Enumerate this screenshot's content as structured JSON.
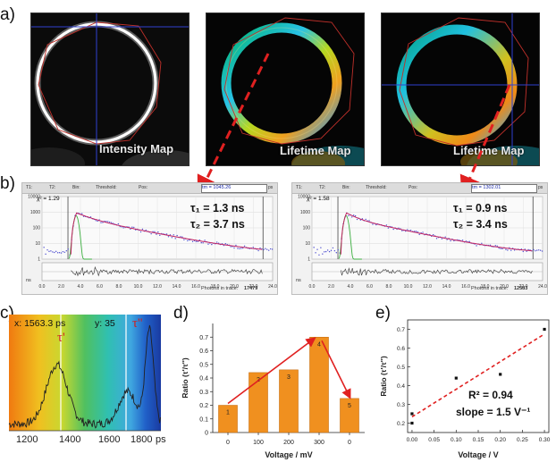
{
  "panels": {
    "a": "a)",
    "b": "b)",
    "c": "c)",
    "d": "d)",
    "e": "e)"
  },
  "panel_a": {
    "images": [
      {
        "label": "Intensity Map"
      },
      {
        "label": "Lifetime Map"
      },
      {
        "label": "Lifetime Map"
      }
    ]
  },
  "panel_b": {
    "left": {
      "toolbar": {
        "t1": "T1:",
        "t2": "T2:",
        "bin": "Bin:",
        "threshold": "Threshold:",
        "pos": "Pos:"
      },
      "tm_value": "1045.26",
      "tm_prefix": "tm =",
      "tm_unit": "ps",
      "chi": "χ² = 1.29",
      "tau1": "τ₁ = 1.3 ns",
      "tau2": "τ₂ = 3.7 ns",
      "photons_label": "Photons in trace:",
      "photons": "17479",
      "ns_label": "ns",
      "xticks": [
        "0.0",
        "2.0",
        "4.0",
        "6.0",
        "8.0",
        "10.0",
        "12.0",
        "14.0",
        "16.0",
        "18.0",
        "20.0",
        "22.0",
        "24.0"
      ],
      "yticks": [
        "10000",
        "1000",
        "100",
        "10",
        "1"
      ]
    },
    "right": {
      "toolbar": {
        "t1": "T1:",
        "t2": "T2:",
        "bin": "Bin:",
        "threshold": "Threshold:",
        "pos": "Pos:"
      },
      "tm_value": "1302.01",
      "tm_prefix": "tm =",
      "tm_unit": "ps",
      "chi": "χ² = 1.58",
      "tau1": "τ₁ = 0.9 ns",
      "tau2": "τ₂ = 3.4 ns",
      "photons_label": "Photons in trace:",
      "photons": "12583",
      "ns_label": "ns",
      "xticks": [
        "0.0",
        "2.0",
        "4.0",
        "6.0",
        "8.0",
        "10.0",
        "12.0",
        "14.0",
        "16.0",
        "18.0",
        "20.0",
        "22.0",
        "24.0"
      ],
      "yticks": [
        "10000",
        "1000",
        "100",
        "10",
        "1"
      ]
    }
  },
  "panel_c": {
    "readout_x": "x: 1563.3  ps",
    "readout_y": "y:  35",
    "tau_prime": "τ'",
    "tau_dprime": "τ''",
    "xticks": [
      "1200",
      "1400",
      "1600",
      "1800"
    ],
    "xunit": "ps"
  },
  "chart_data": [
    {
      "type": "bar",
      "categories": [
        "0",
        "100",
        "200",
        "300",
        "0"
      ],
      "values": [
        0.2,
        0.44,
        0.46,
        0.7,
        0.25
      ],
      "bar_labels": [
        "1",
        "2",
        "3",
        "4",
        "5"
      ],
      "xlabel": "Voltage / mV",
      "ylabel": "Ratio (τ'/τ'')",
      "ylim": [
        0,
        0.8
      ],
      "yticks": [
        "0",
        "0.1",
        "0.2",
        "0.3",
        "0.4",
        "0.5",
        "0.6",
        "0.7"
      ],
      "bar_color": "#f0901f",
      "arrow_color": "#e02020"
    },
    {
      "type": "scatter",
      "x": [
        0.0,
        0.0,
        0.1,
        0.2,
        0.3
      ],
      "y": [
        0.2,
        0.25,
        0.44,
        0.46,
        0.7
      ],
      "xlabel": "Voltage / V",
      "ylabel": "Ratio (τ'/τ'')",
      "xlim": [
        -0.01,
        0.31
      ],
      "ylim": [
        0.15,
        0.75
      ],
      "xticks": [
        "0.00",
        "0.05",
        "0.10",
        "0.15",
        "0.20",
        "0.25",
        "0.30"
      ],
      "yticks": [
        "0.2",
        "0.3",
        "0.4",
        "0.5",
        "0.6",
        "0.7"
      ],
      "r2": "R² = 0.94",
      "slope": "slope = 1.5 V⁻¹",
      "fit_color": "#e02020"
    }
  ]
}
